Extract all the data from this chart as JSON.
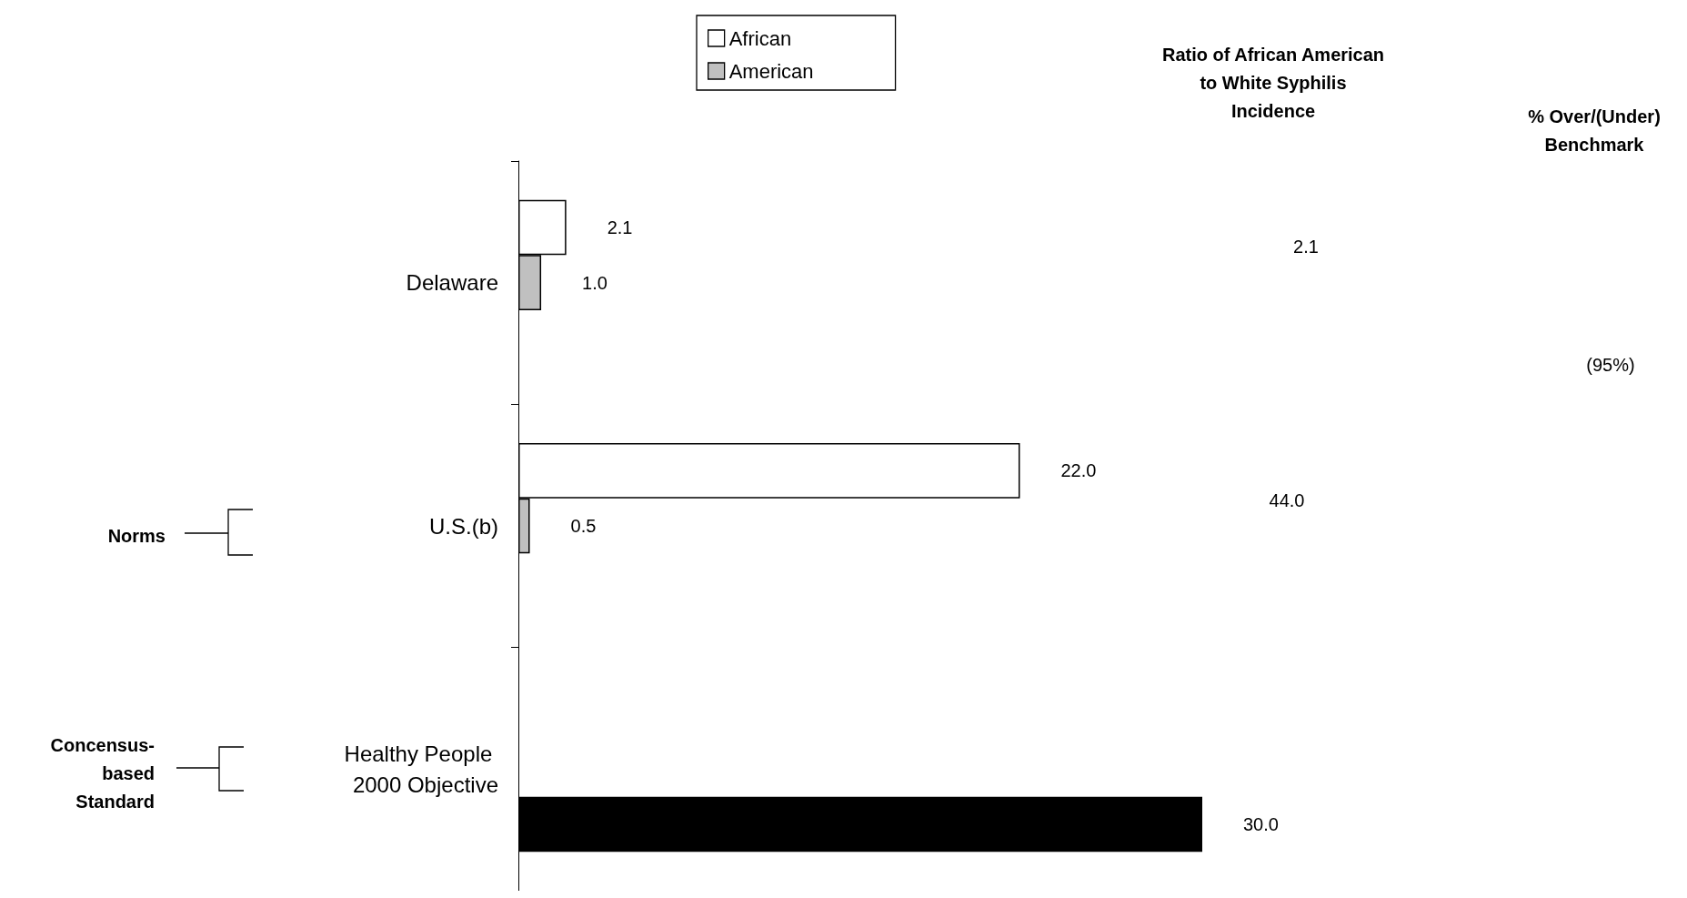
{
  "chart_data": {
    "type": "bar",
    "orientation": "horizontal",
    "categories": [
      "Delaware",
      "U.S.(b)",
      "Healthy People 2000 Objective"
    ],
    "series": [
      {
        "name": "African",
        "color": "#ffffff",
        "values": [
          2.1,
          22.0,
          null
        ],
        "value_labels": [
          "2.1",
          "22.0",
          null
        ]
      },
      {
        "name": "American",
        "color": "#c0c0c0",
        "values": [
          1.0,
          0.5,
          null
        ],
        "value_labels": [
          "1.0",
          "0.5",
          null
        ]
      },
      {
        "color": "#000000",
        "values": [
          null,
          null,
          30.0
        ],
        "value_labels": [
          null,
          null,
          "30.0"
        ]
      }
    ],
    "legend": "top",
    "annotations": [
      "Ratio of African American to White Syphilis Incidence",
      "% Over/(Under) Benchmark",
      "2.1",
      "44.0",
      "(95%)",
      "Norms",
      "Concensus-based Standard"
    ]
  }
}
